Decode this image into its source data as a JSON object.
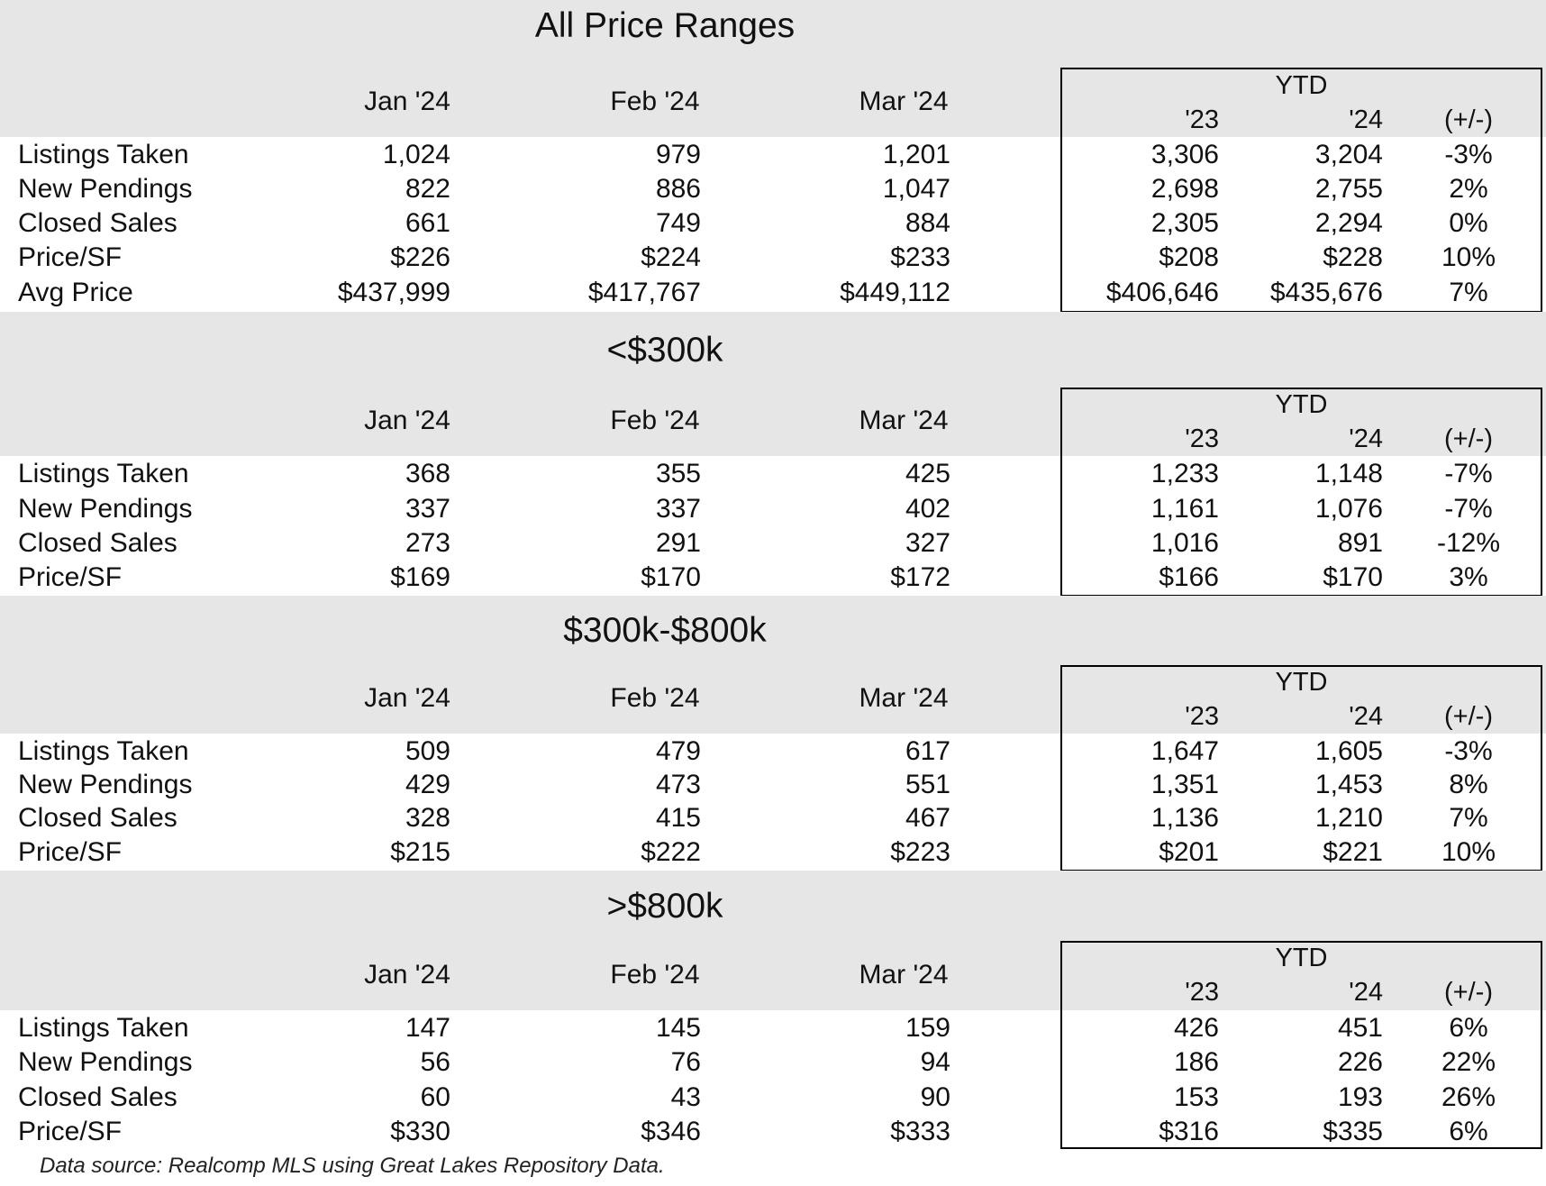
{
  "sections": [
    {
      "title": "All Price Ranges",
      "months": [
        "Jan '24",
        "Feb '24",
        "Mar '24"
      ],
      "ytd_title": "YTD",
      "ytd_cols": [
        "'23",
        "'24",
        "(+/-)"
      ],
      "rows": [
        {
          "label": "Listings Taken",
          "values": [
            "1,024",
            "979",
            "1,201"
          ],
          "ytd": [
            "3,306",
            "3,204",
            "-3%"
          ]
        },
        {
          "label": "New Pendings",
          "values": [
            "822",
            "886",
            "1,047"
          ],
          "ytd": [
            "2,698",
            "2,755",
            "2%"
          ]
        },
        {
          "label": "Closed Sales",
          "values": [
            "661",
            "749",
            "884"
          ],
          "ytd": [
            "2,305",
            "2,294",
            "0%"
          ]
        },
        {
          "label": "Price/SF",
          "values": [
            "$226",
            "$224",
            "$233"
          ],
          "ytd": [
            "$208",
            "$228",
            "10%"
          ]
        },
        {
          "label": "Avg Price",
          "values": [
            "$437,999",
            "$417,767",
            "$449,112"
          ],
          "ytd": [
            "$406,646",
            "$435,676",
            "7%"
          ]
        }
      ]
    },
    {
      "title": "<$300k",
      "months": [
        "Jan '24",
        "Feb '24",
        "Mar '24"
      ],
      "ytd_title": "YTD",
      "ytd_cols": [
        "'23",
        "'24",
        "(+/-)"
      ],
      "rows": [
        {
          "label": "Listings Taken",
          "values": [
            "368",
            "355",
            "425"
          ],
          "ytd": [
            "1,233",
            "1,148",
            "-7%"
          ]
        },
        {
          "label": "New Pendings",
          "values": [
            "337",
            "337",
            "402"
          ],
          "ytd": [
            "1,161",
            "1,076",
            "-7%"
          ]
        },
        {
          "label": "Closed Sales",
          "values": [
            "273",
            "291",
            "327"
          ],
          "ytd": [
            "1,016",
            "891",
            "-12%"
          ]
        },
        {
          "label": "Price/SF",
          "values": [
            "$169",
            "$170",
            "$172"
          ],
          "ytd": [
            "$166",
            "$170",
            "3%"
          ]
        }
      ]
    },
    {
      "title": "$300k-$800k",
      "months": [
        "Jan '24",
        "Feb '24",
        "Mar '24"
      ],
      "ytd_title": "YTD",
      "ytd_cols": [
        "'23",
        "'24",
        "(+/-)"
      ],
      "rows": [
        {
          "label": "Listings Taken",
          "values": [
            "509",
            "479",
            "617"
          ],
          "ytd": [
            "1,647",
            "1,605",
            "-3%"
          ]
        },
        {
          "label": "New Pendings",
          "values": [
            "429",
            "473",
            "551"
          ],
          "ytd": [
            "1,351",
            "1,453",
            "8%"
          ]
        },
        {
          "label": "Closed Sales",
          "values": [
            "328",
            "415",
            "467"
          ],
          "ytd": [
            "1,136",
            "1,210",
            "7%"
          ]
        },
        {
          "label": "Price/SF",
          "values": [
            "$215",
            "$222",
            "$223"
          ],
          "ytd": [
            "$201",
            "$221",
            "10%"
          ]
        }
      ]
    },
    {
      "title": ">$800k",
      "months": [
        "Jan '24",
        "Feb '24",
        "Mar '24"
      ],
      "ytd_title": "YTD",
      "ytd_cols": [
        "'23",
        "'24",
        "(+/-)"
      ],
      "rows": [
        {
          "label": "Listings Taken",
          "values": [
            "147",
            "145",
            "159"
          ],
          "ytd": [
            "426",
            "451",
            "6%"
          ]
        },
        {
          "label": "New Pendings",
          "values": [
            "56",
            "76",
            "94"
          ],
          "ytd": [
            "186",
            "226",
            "22%"
          ]
        },
        {
          "label": "Closed Sales",
          "values": [
            "60",
            "43",
            "90"
          ],
          "ytd": [
            "153",
            "193",
            "26%"
          ]
        },
        {
          "label": "Price/SF",
          "values": [
            "$330",
            "$346",
            "$333"
          ],
          "ytd": [
            "$316",
            "$335",
            "6%"
          ]
        }
      ]
    }
  ],
  "footer": "Data source: Realcomp MLS using Great Lakes Repository Data."
}
